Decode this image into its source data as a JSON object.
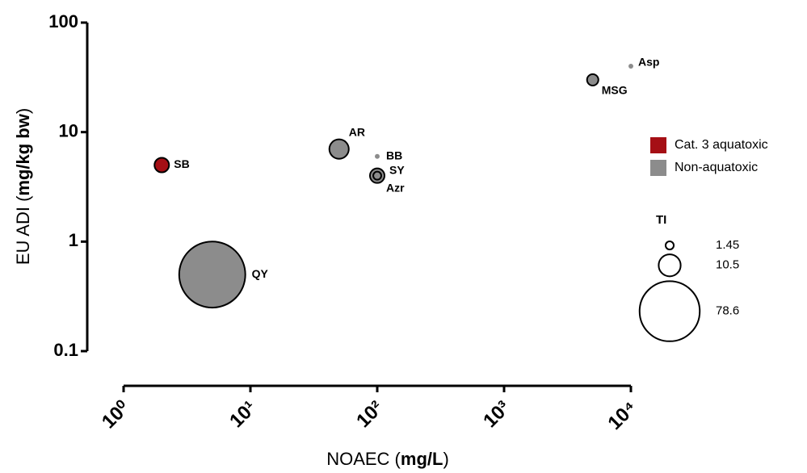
{
  "chart_data": {
    "type": "bubble",
    "x_label": [
      "NOAEC (",
      "mg/L",
      ")"
    ],
    "y_label": [
      "EU ADI (",
      "mg/kg bw",
      ")"
    ],
    "xscale": "log",
    "yscale": "log",
    "xlim": [
      1,
      10000
    ],
    "ylim": [
      0.1,
      100
    ],
    "xticks": [
      {
        "value": 1,
        "label": "10⁰"
      },
      {
        "value": 10,
        "label": "10¹"
      },
      {
        "value": 100,
        "label": "10²"
      },
      {
        "value": 1000,
        "label": "10³"
      },
      {
        "value": 10000,
        "label": "10⁴"
      }
    ],
    "yticks": [
      0.1,
      1,
      10,
      100
    ],
    "legend": "right",
    "series": [
      {
        "name": "Cat. 3 aquatoxic",
        "color": "#a50f15",
        "labels": [
          "SB"
        ],
        "x": [
          2
        ],
        "values": [
          5
        ],
        "size": [
          4.6
        ]
      },
      {
        "name": "Non-aquatoxic",
        "color": "#8c8c8c",
        "labels": [
          "QY",
          "AR",
          "BB",
          "SY",
          "Azr",
          "MSG",
          "Asp"
        ],
        "x": [
          5,
          50,
          100,
          100,
          100,
          5000,
          10000
        ],
        "values": [
          0.5,
          7,
          6,
          4,
          4,
          30,
          40
        ],
        "size": [
          95,
          8.2,
          0.5,
          4.6,
          1.4,
          2.8,
          0.5
        ]
      }
    ],
    "size_legend": {
      "title": "TI",
      "values": [
        1.45,
        10.5,
        78.6
      ]
    }
  }
}
